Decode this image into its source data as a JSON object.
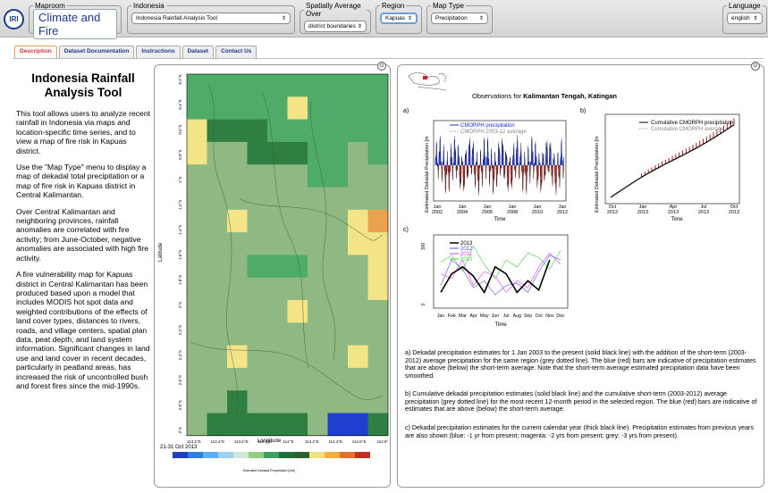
{
  "logo_text": "IRI",
  "controls": {
    "maproom": {
      "legend": "Maproom",
      "value": "Climate and Fire"
    },
    "indonesia": {
      "legend": "Indonesia",
      "value": "Indonesia Rainfall Analysis Tool"
    },
    "spatial": {
      "legend": "Spatially Average Over",
      "value": "district boundaries"
    },
    "region": {
      "legend": "Region",
      "value": "Kapuas"
    },
    "maptype": {
      "legend": "Map Type",
      "value": "Precipitation"
    },
    "language": {
      "legend": "Language",
      "value": "english"
    }
  },
  "tabs": [
    "Description",
    "Dataset Documentation",
    "Instructions",
    "Dataset",
    "Contact Us"
  ],
  "description": {
    "title": "Indonesia Rainfall Analysis Tool",
    "paragraphs": [
      "This tool allows users to analyze recent rainfall in Indonesia via maps and location-specific time series, and to view a map of fire risk in Kapuas district.",
      "Use the \"Map Type\" menu to display a map of dekadal total precipitation or a map of fire risk in Kapuas district in Central Kalimantan.",
      "Over Central Kalimantan and neighboring provinces, rainfall anomalies are correlated with fire activity; from June-October, negative anomalies are associated with high fire activity.",
      "A fire vulnerability map for Kapuas district in Central Kalimantan has been produced based upon a model that includes MODIS hot spot data and weighted contributions of the effects of land cover types, distances to rivers, roads, and village centers, spatial plan data, peat depth, and land system information. Significant changes in land use and land cover in recent decades, particularly in peatland areas, has increased the risk of uncontrolled bush and forest fires since the mid-1990s."
    ]
  },
  "map": {
    "ylabel": "Latitude",
    "xlabel": "Longitude",
    "lat_ticks": [
      "0.2°S",
      "0.4°S",
      "0.6°S",
      "0.8°S",
      "1°S",
      "1.2°S",
      "1.4°S",
      "1.6°S",
      "1.8°S",
      "2°S",
      "2.2°S",
      "2.4°S",
      "2.6°S",
      "2.8°S",
      "3°S"
    ],
    "lon_ticks": [
      "113.2°E",
      "113.4°E",
      "113.6°E",
      "113.8°E",
      "114°E",
      "114.2°E",
      "114.4°E",
      "114.6°E",
      "114.8°"
    ],
    "date": "21-31 Oct 2013",
    "colorbar_label": "Estimated Dekadal Precipitation [mm]",
    "colorbar_colors": [
      "#1f3fbf",
      "#2f7fdf",
      "#5fb0ef",
      "#9fd0f0",
      "#cfe8d8",
      "#8fcf7f",
      "#3f9f5f",
      "#1f6f3f",
      "#2f5f2f",
      "#f0e080",
      "#f0b040",
      "#e07030",
      "#c03020"
    ],
    "palette": {
      "A": "#8fb882",
      "G": "#4fac68",
      "D": "#2f7f43",
      "Y": "#f3e487",
      "O": "#eba24d",
      "B": "#1f3fcf"
    },
    "grid": [
      "GGGGGGGGGG",
      "GGGGGYGGGG",
      "YDDDGGGGGG",
      "YAADDDGGAG",
      "AAAAAAGGAA",
      "AAAAAAAAAA",
      "AAYAAAAAYO",
      "AAAAAAAAYY",
      "AAAGGGAAAY",
      "AAAAAAAAAY",
      "AAAAAYAAAA",
      "AAAAAAAAAA",
      "AAYAAAAAYA",
      "AAAAAAAAAA",
      "AADAAAAAAA",
      "ADDDDDABBD"
    ]
  },
  "plots": {
    "title_prefix": "Observations for ",
    "title_place": "Kalimantan Tengah, Katingan",
    "caption_a": "a) Dekadal precipitation estimates for 1 Jan 2003 to the present (solid black line) with the addition of the short-term (2003-2012) average precipitation for the same region (grey dotted line). The blue (red) bars are indicative of precipitation estimates that are above (below) the short-term average. Note that the short-term average estimated precipitation data have been smoothed.",
    "caption_b": "b) Cumulative dekadal precipitation estimates (solid black line) and the cumulative short-term (2003-2012) average precipitation (grey dotted line) for the most recent 12-month period in the selected region. The blue (red) bars are indicative of estimates that are above (below) the short-term average.",
    "caption_c": "c) Dekadal precipitation estimates for the current calendar year (thick black line). Precipitation estimates from previous years are also shown (blue: -1 yr from present; magenta: -2 yrs from present; grey: -3 yrs from present)."
  },
  "chart_data": [
    {
      "type": "bar",
      "panel": "a)",
      "ylabel": "Estimated Dekadal Precipitation [m",
      "xlabel": "Time",
      "x_ticks": [
        "Jan\n2002",
        "Jan\n2004",
        "Jan\n2006",
        "Jan\n2008",
        "Jan\n2010",
        "Jan\n2012"
      ],
      "series": [
        {
          "name": "CMORPH precipitation"
        },
        {
          "name": "CMORPH 2003-12 average"
        }
      ]
    },
    {
      "type": "line",
      "panel": "b)",
      "ylabel": "Estimated Dekadal Precipitation [m",
      "xlabel": "Time",
      "x_ticks": [
        "Oct\n2012",
        "Jan\n2013",
        "Apr\n2013",
        "Jul\n2013",
        "Oct\n2013"
      ],
      "series": [
        {
          "name": "Cumulative CMORPH precipitation"
        },
        {
          "name": "Cumulative CMORPH average"
        }
      ]
    },
    {
      "type": "line",
      "panel": "c)",
      "xlabel": "Time",
      "y_ticks": [
        "300",
        "0"
      ],
      "x_ticks": [
        "Jan",
        "Feb",
        "Mar",
        "Apr",
        "May",
        "Jun",
        "Jul",
        "Aug",
        "Sep",
        "Oct",
        "Nov",
        "Dec"
      ],
      "series": [
        {
          "name": "2013",
          "color": "#000000",
          "values": [
            60,
            140,
            170,
            130,
            60,
            170,
            140,
            60,
            110,
            70,
            200,
            null
          ]
        },
        {
          "name": "2012",
          "color": "#5050e0",
          "values": [
            90,
            200,
            160,
            80,
            110,
            50,
            90,
            100,
            60,
            150,
            220,
            200
          ]
        },
        {
          "name": "2011",
          "color": "#e040e0",
          "values": [
            140,
            120,
            200,
            90,
            150,
            130,
            60,
            110,
            80,
            170,
            230,
            180
          ]
        },
        {
          "name": "2010",
          "color": "#40d040",
          "values": [
            190,
            220,
            150,
            260,
            180,
            120,
            200,
            170,
            230,
            210,
            160,
            240
          ]
        }
      ]
    }
  ]
}
